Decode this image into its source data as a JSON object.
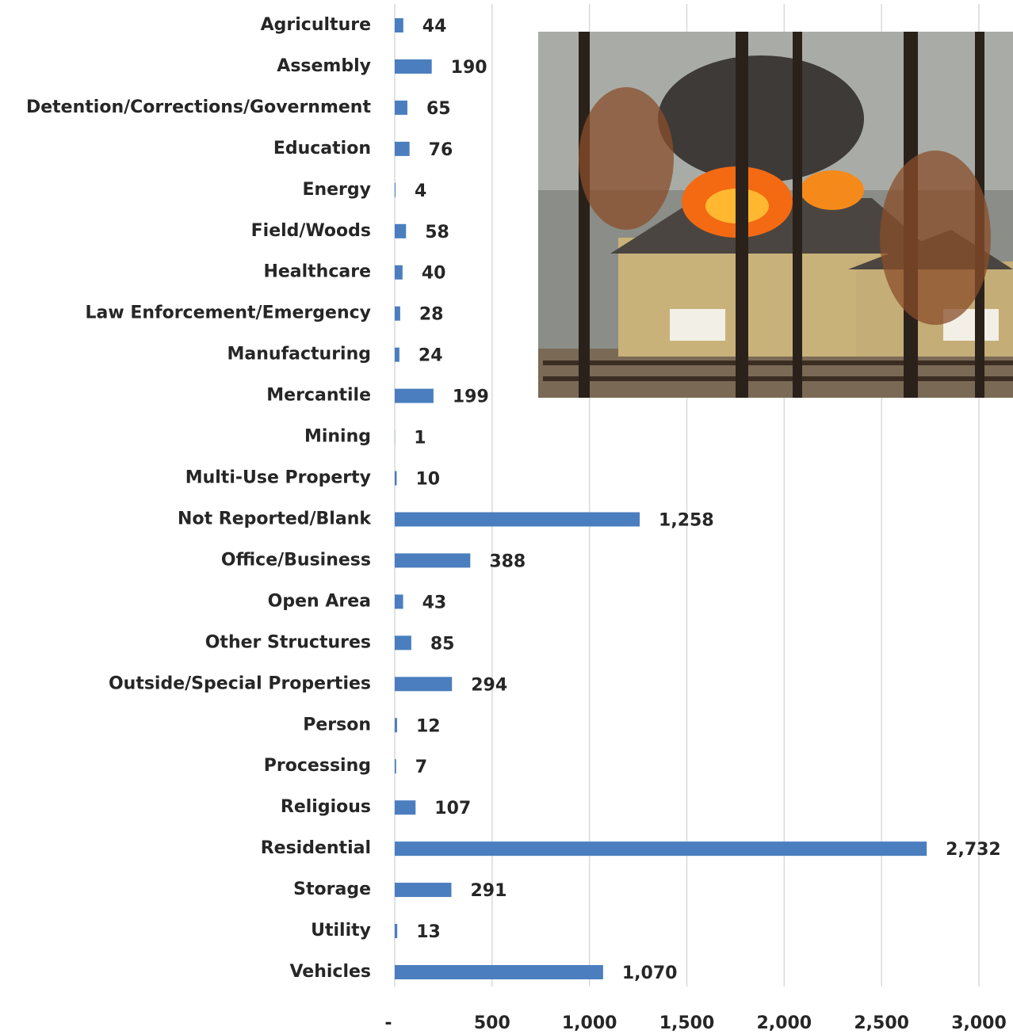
{
  "chart_data": {
    "type": "bar",
    "orientation": "horizontal",
    "categories": [
      "Agriculture",
      "Assembly",
      "Detention/Corrections/Government",
      "Education",
      "Energy",
      "Field/Woods",
      "Healthcare",
      "Law Enforcement/Emergency",
      "Manufacturing",
      "Mercantile",
      "Mining",
      "Multi-Use Property",
      "Not Reported/Blank",
      "Office/Business",
      "Open Area",
      "Other Structures",
      "Outside/Special Properties",
      "Person",
      "Processing",
      "Religious",
      "Residential",
      "Storage",
      "Utility",
      "Vehicles"
    ],
    "values": [
      44,
      190,
      65,
      76,
      4,
      58,
      40,
      28,
      24,
      199,
      1,
      10,
      1258,
      388,
      43,
      85,
      294,
      12,
      7,
      107,
      2732,
      291,
      13,
      1070
    ],
    "value_labels": [
      "44",
      "190",
      "65",
      "76",
      "4",
      "58",
      "40",
      "28",
      "24",
      "199",
      "1",
      "10",
      "1,258",
      "388",
      "43",
      "85",
      "294",
      "12",
      "7",
      "107",
      "2,732",
      "291",
      "13",
      "1,070"
    ],
    "color": "#4a7ebf",
    "xlim": [
      0,
      3000
    ],
    "xticks": [
      {
        "value": 0,
        "label": "-"
      },
      500,
      {
        "value": 1000,
        "label": "1,000"
      },
      {
        "value": 1500,
        "label": "1,500"
      },
      {
        "value": 2000,
        "label": "2,000"
      },
      {
        "value": 2500,
        "label": "2,500"
      },
      {
        "value": 3000,
        "label": "3,000"
      }
    ],
    "grid": true
  }
}
